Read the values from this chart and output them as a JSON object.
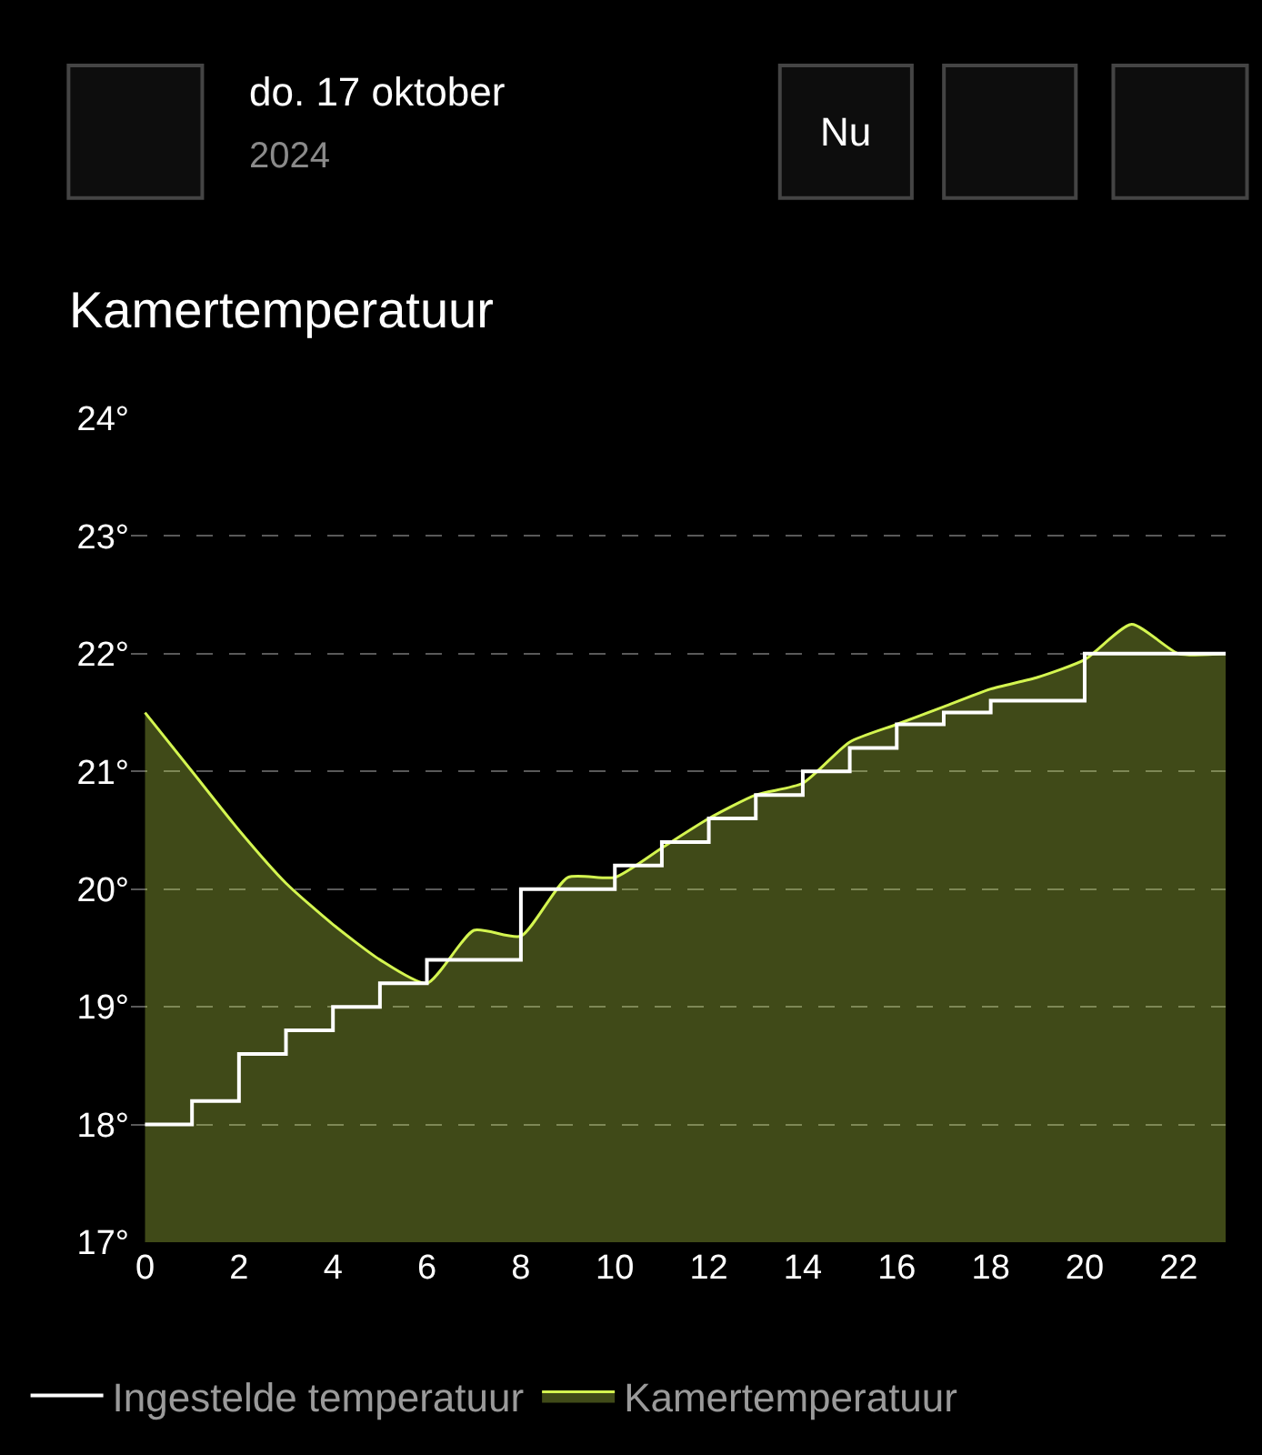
{
  "chart_data": {
    "type": "area",
    "title": "Kamertemperatuur",
    "annotations": [
      "do. 17 oktober",
      "2024",
      "Nu"
    ],
    "x": [
      0,
      1,
      2,
      3,
      4,
      5,
      6,
      7,
      8,
      9,
      10,
      11,
      12,
      13,
      14,
      15,
      16,
      17,
      18,
      19,
      20,
      21,
      22,
      23
    ],
    "series": [
      {
        "name": "Ingestelde temperatuur",
        "type": "step",
        "color": "#ffffff",
        "values": [
          18.0,
          18.2,
          18.6,
          18.8,
          19.0,
          19.2,
          19.4,
          19.4,
          20.0,
          20.0,
          20.2,
          20.4,
          20.6,
          20.8,
          21.0,
          21.2,
          21.4,
          21.5,
          21.6,
          21.6,
          22.0,
          22.0,
          22.0,
          22.0
        ]
      },
      {
        "name": "Kamertemperatuur",
        "color": "#d4f550",
        "values": [
          21.5,
          21.0,
          20.5,
          20.05,
          19.7,
          19.4,
          19.2,
          19.65,
          19.6,
          20.1,
          20.1,
          20.35,
          20.6,
          20.8,
          20.9,
          21.25,
          21.4,
          21.55,
          21.7,
          21.8,
          21.95,
          22.25,
          22.0,
          22.0
        ]
      }
    ],
    "xlim": [
      -0.3,
      23
    ],
    "xticks": [
      0,
      2,
      4,
      6,
      8,
      10,
      12,
      14,
      16,
      18,
      20,
      22
    ],
    "ylim": [
      17,
      24
    ],
    "yticks": [
      {
        "value": 17,
        "label": "17°"
      },
      {
        "value": 18,
        "label": "18°"
      },
      {
        "value": 19,
        "label": "19°"
      },
      {
        "value": 20,
        "label": "20°"
      },
      {
        "value": 21,
        "label": "21°"
      },
      {
        "value": 22,
        "label": "22°"
      },
      {
        "value": 23,
        "label": "23°"
      },
      {
        "value": 24,
        "label": "24°"
      }
    ],
    "grid": "y",
    "legend": "bottom",
    "marker": "none"
  }
}
